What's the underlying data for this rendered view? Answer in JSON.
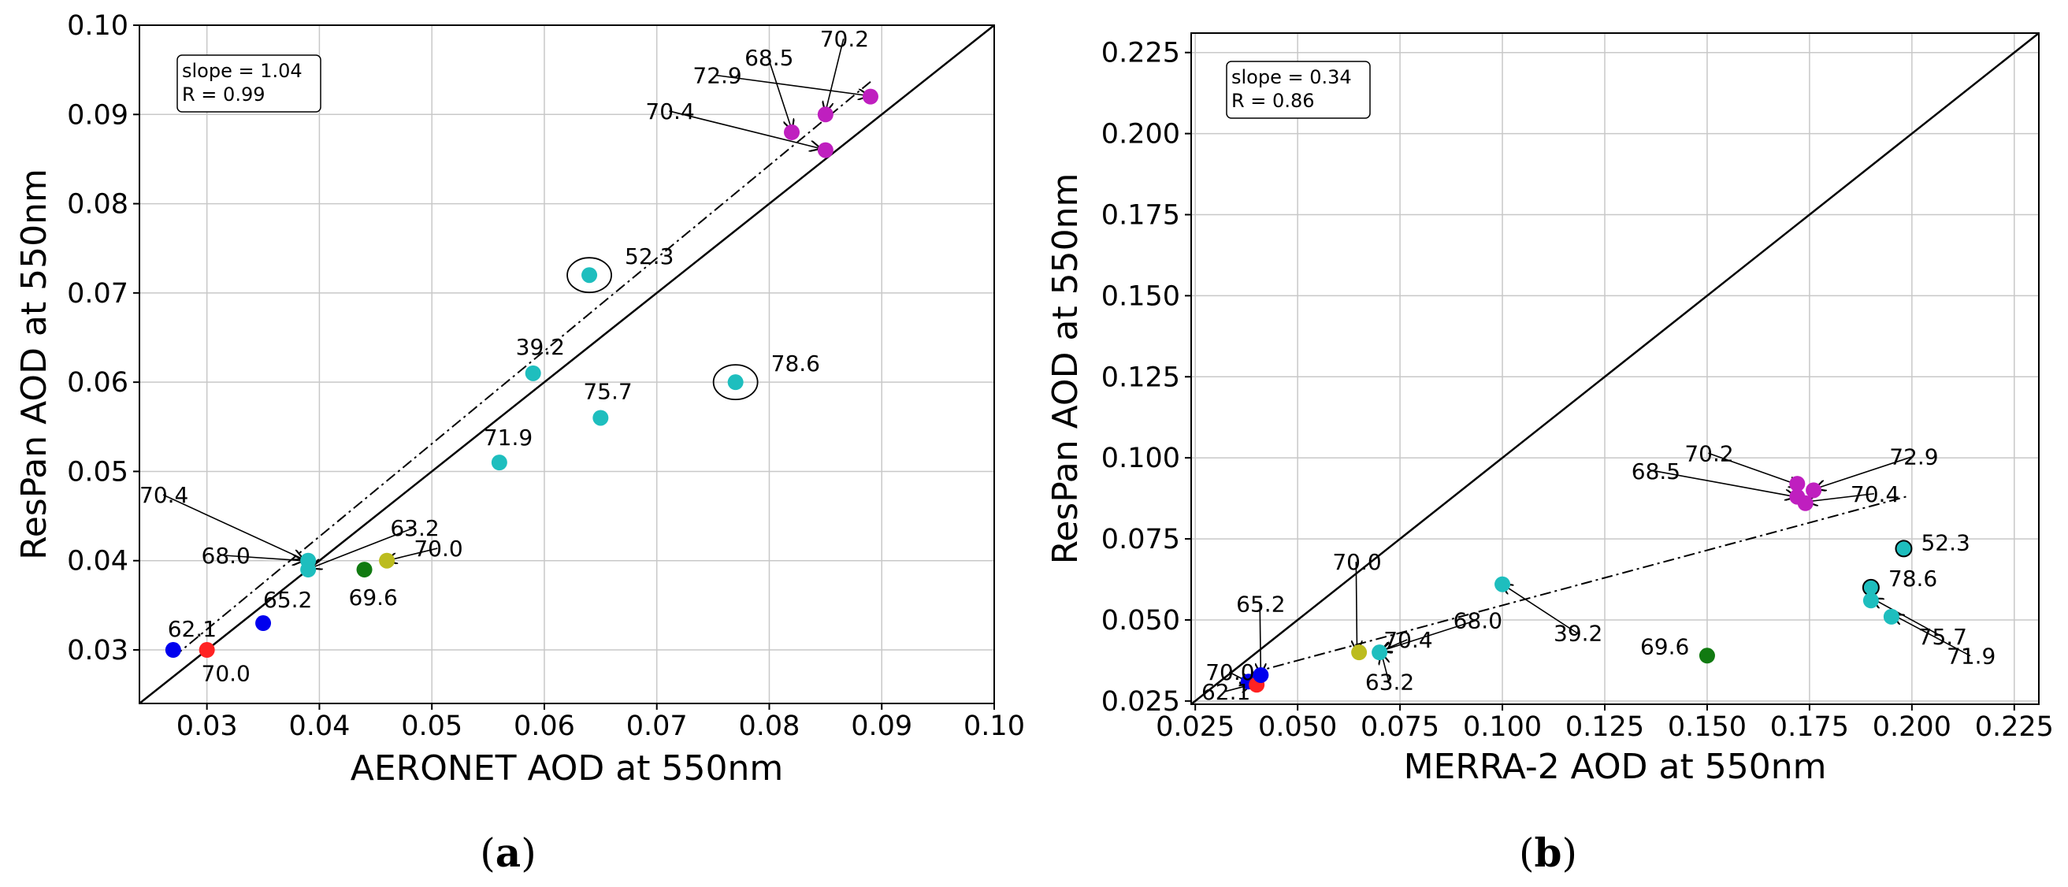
{
  "chart_data": [
    {
      "type": "scatter",
      "panel": "(a)",
      "panel_letter": "a",
      "xlabel": "AERONET AOD at 550nm",
      "ylabel": "ResPan AOD at 550nm",
      "xlim": [
        0.024,
        0.1
      ],
      "ylim": [
        0.024,
        0.1
      ],
      "xticks": [
        "0.03",
        "0.04",
        "0.05",
        "0.06",
        "0.07",
        "0.08",
        "0.09",
        "0.10"
      ],
      "yticks": [
        "0.03",
        "0.04",
        "0.05",
        "0.06",
        "0.07",
        "0.08",
        "0.09",
        "0.10"
      ],
      "grid": true,
      "stats": {
        "slope": "slope = 1.04",
        "r": "R = 0.99"
      },
      "one_to_one_line": true,
      "fit_line": {
        "slope": 1.04,
        "x_range": [
          0.027,
          0.089
        ],
        "intercept": 0.0011
      },
      "points": [
        {
          "x": 0.027,
          "y": 0.03,
          "color": "#0000ee",
          "label": ""
        },
        {
          "x": 0.03,
          "y": 0.03,
          "color": "#ff2222",
          "label": ""
        },
        {
          "x": 0.035,
          "y": 0.033,
          "color": "#0000ee",
          "label": "65.2"
        },
        {
          "x": 0.039,
          "y": 0.04,
          "color": "#1ebebe",
          "label": ""
        },
        {
          "x": 0.039,
          "y": 0.039,
          "color": "#1ebebe",
          "label": ""
        },
        {
          "x": 0.044,
          "y": 0.039,
          "color": "#117a11",
          "label": "69.6"
        },
        {
          "x": 0.046,
          "y": 0.04,
          "color": "#bcbc1e",
          "label": ""
        },
        {
          "x": 0.056,
          "y": 0.051,
          "color": "#1ebebe",
          "label": "71.9"
        },
        {
          "x": 0.059,
          "y": 0.061,
          "color": "#1ebebe",
          "label": "39.2"
        },
        {
          "x": 0.064,
          "y": 0.072,
          "color": "#1ebebe",
          "label": "52.3",
          "circled": true
        },
        {
          "x": 0.065,
          "y": 0.056,
          "color": "#1ebebe",
          "label": "75.7"
        },
        {
          "x": 0.077,
          "y": 0.06,
          "color": "#1ebebe",
          "label": "78.6",
          "circled": true
        },
        {
          "x": 0.082,
          "y": 0.088,
          "color": "#bf1fbf",
          "label": ""
        },
        {
          "x": 0.085,
          "y": 0.09,
          "color": "#bf1fbf",
          "label": ""
        },
        {
          "x": 0.085,
          "y": 0.086,
          "color": "#bf1fbf",
          "label": ""
        },
        {
          "x": 0.089,
          "y": 0.092,
          "color": "#bf1fbf",
          "label": ""
        }
      ],
      "annotations": [
        {
          "text": "62.1",
          "tx": 0.0265,
          "ty": 0.0315
        },
        {
          "text": "70.0",
          "tx": 0.0295,
          "ty": 0.0265
        },
        {
          "text": "70.4",
          "tx": 0.024,
          "ty": 0.0465,
          "ax": 0.0385,
          "ay": 0.0402
        },
        {
          "text": "68.0",
          "tx": 0.0295,
          "ty": 0.0397,
          "ax": 0.0385,
          "ay": 0.04
        },
        {
          "text": "63.2",
          "tx": 0.0463,
          "ty": 0.0428,
          "ax": 0.0393,
          "ay": 0.0392
        },
        {
          "text": "70.0",
          "tx": 0.0484,
          "ty": 0.0405,
          "ax": 0.046,
          "ay": 0.04
        },
        {
          "text": "68.5",
          "tx": 0.0778,
          "ty": 0.0955,
          "ax": 0.082,
          "ay": 0.0883
        },
        {
          "text": "70.2",
          "tx": 0.0845,
          "ty": 0.0976,
          "ax": 0.085,
          "ay": 0.0903
        },
        {
          "text": "72.9",
          "tx": 0.0732,
          "ty": 0.0935,
          "ax": 0.0888,
          "ay": 0.0921
        },
        {
          "text": "70.4",
          "tx": 0.069,
          "ty": 0.0895,
          "ax": 0.0845,
          "ay": 0.0862
        }
      ]
    },
    {
      "type": "scatter",
      "panel": "(b)",
      "panel_letter": "b",
      "xlabel": "MERRA-2 AOD at 550nm",
      "ylabel": "ResPan AOD at 550nm",
      "xlim": [
        0.024,
        0.231
      ],
      "ylim": [
        0.024,
        0.231
      ],
      "xticks": [
        "0.025",
        "0.050",
        "0.075",
        "0.100",
        "0.125",
        "0.150",
        "0.175",
        "0.200",
        "0.225"
      ],
      "yticks": [
        "0.025",
        "0.050",
        "0.075",
        "0.100",
        "0.125",
        "0.150",
        "0.175",
        "0.200",
        "0.225"
      ],
      "grid": true,
      "stats": {
        "slope": "slope = 0.34",
        "r": "R = 0.86"
      },
      "one_to_one_line": true,
      "fit_line": {
        "slope": 0.34,
        "x_range": [
          0.039,
          0.199
        ],
        "intercept": 0.0205
      },
      "points": [
        {
          "x": 0.038,
          "y": 0.031,
          "color": "#0000ee",
          "label": ""
        },
        {
          "x": 0.04,
          "y": 0.03,
          "color": "#ff2222",
          "label": ""
        },
        {
          "x": 0.041,
          "y": 0.033,
          "color": "#0000ee",
          "label": ""
        },
        {
          "x": 0.065,
          "y": 0.04,
          "color": "#bcbc1e",
          "label": ""
        },
        {
          "x": 0.07,
          "y": 0.04,
          "color": "#1ebebe",
          "label": ""
        },
        {
          "x": 0.1,
          "y": 0.061,
          "color": "#1ebebe",
          "label": ""
        },
        {
          "x": 0.15,
          "y": 0.039,
          "color": "#117a11",
          "label": "69.6"
        },
        {
          "x": 0.172,
          "y": 0.088,
          "color": "#bf1fbf",
          "label": ""
        },
        {
          "x": 0.172,
          "y": 0.092,
          "color": "#bf1fbf",
          "label": ""
        },
        {
          "x": 0.176,
          "y": 0.09,
          "color": "#bf1fbf",
          "label": ""
        },
        {
          "x": 0.174,
          "y": 0.086,
          "color": "#bf1fbf",
          "label": ""
        },
        {
          "x": 0.19,
          "y": 0.06,
          "color": "#1ebebe",
          "label": "78.6",
          "edged": true
        },
        {
          "x": 0.19,
          "y": 0.056,
          "color": "#1ebebe",
          "label": ""
        },
        {
          "x": 0.195,
          "y": 0.051,
          "color": "#1ebebe",
          "label": ""
        },
        {
          "x": 0.198,
          "y": 0.072,
          "color": "#1ebebe",
          "label": "52.3",
          "edged": true
        }
      ],
      "annotations": [
        {
          "text": "65.2",
          "tx": 0.035,
          "ty": 0.0525,
          "ax": 0.041,
          "ay": 0.0335
        },
        {
          "text": "70.0",
          "tx": 0.0275,
          "ty": 0.0315,
          "ax": 0.0385,
          "ay": 0.0305
        },
        {
          "text": "62.1",
          "tx": 0.0265,
          "ty": 0.0255,
          "ax": 0.0385,
          "ay": 0.03
        },
        {
          "text": "70.0",
          "tx": 0.0585,
          "ty": 0.0655,
          "ax": 0.0645,
          "ay": 0.0405
        },
        {
          "text": "70.4",
          "tx": 0.071,
          "ty": 0.0415,
          "ax": 0.0705,
          "ay": 0.0405
        },
        {
          "text": "68.0",
          "tx": 0.088,
          "ty": 0.0475,
          "ax": 0.0705,
          "ay": 0.0405
        },
        {
          "text": "63.2",
          "tx": 0.0665,
          "ty": 0.0285,
          "ax": 0.0705,
          "ay": 0.0395
        },
        {
          "text": "39.2",
          "tx": 0.1125,
          "ty": 0.0435,
          "ax": 0.1,
          "ay": 0.061
        },
        {
          "text": "70.2",
          "tx": 0.1445,
          "ty": 0.099,
          "ax": 0.1725,
          "ay": 0.0915
        },
        {
          "text": "68.5",
          "tx": 0.1315,
          "ty": 0.0935,
          "ax": 0.1715,
          "ay": 0.088
        },
        {
          "text": "72.9",
          "tx": 0.1945,
          "ty": 0.098,
          "ax": 0.1765,
          "ay": 0.0905
        },
        {
          "text": "70.4",
          "tx": 0.185,
          "ty": 0.0865,
          "ax": 0.1745,
          "ay": 0.0865
        },
        {
          "text": "75.7",
          "tx": 0.2015,
          "ty": 0.0425,
          "ax": 0.1905,
          "ay": 0.0565
        },
        {
          "text": "71.9",
          "tx": 0.2085,
          "ty": 0.0365,
          "ax": 0.1955,
          "ay": 0.0515
        }
      ]
    }
  ]
}
